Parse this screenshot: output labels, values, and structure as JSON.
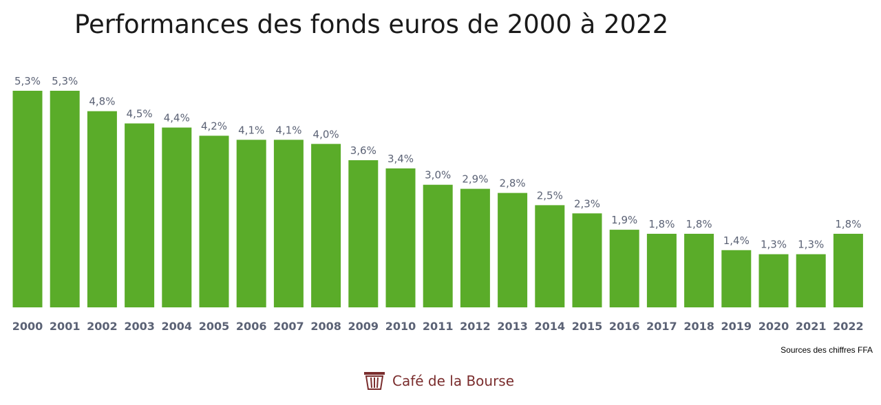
{
  "chart_data": {
    "type": "bar",
    "title": "Performances des fonds euros de 2000 à 2022",
    "categories": [
      "2000",
      "2001",
      "2002",
      "2003",
      "2004",
      "2005",
      "2006",
      "2007",
      "2008",
      "2009",
      "2010",
      "2011",
      "2012",
      "2013",
      "2014",
      "2015",
      "2016",
      "2017",
      "2018",
      "2019",
      "2020",
      "2021",
      "2022"
    ],
    "values": [
      5.3,
      5.3,
      4.8,
      4.5,
      4.4,
      4.2,
      4.1,
      4.1,
      4.0,
      3.6,
      3.4,
      3.0,
      2.9,
      2.8,
      2.5,
      2.3,
      1.9,
      1.8,
      1.8,
      1.4,
      1.3,
      1.3,
      1.8
    ],
    "value_labels": [
      "5,3%",
      "5,3%",
      "4,8%",
      "4,5%",
      "4,4%",
      "4,2%",
      "4,1%",
      "4,1%",
      "4,0%",
      "3,6%",
      "3,4%",
      "3,0%",
      "2,9%",
      "2,8%",
      "2,5%",
      "2,3%",
      "1,9%",
      "1,8%",
      "1,8%",
      "1,4%",
      "1,3%",
      "1,3%",
      "1,8%"
    ],
    "xlabel": "",
    "ylabel": "",
    "ylim": [
      0,
      5.3
    ],
    "grid": false,
    "legend": "none",
    "bar_color": "#5aac29",
    "label_color": "#5b6275"
  },
  "source_note": "Sources des chiffres FFA",
  "brand": {
    "name": "Café de la Bourse",
    "icon": "basket-logo-icon",
    "color": "#7a2d2d"
  }
}
